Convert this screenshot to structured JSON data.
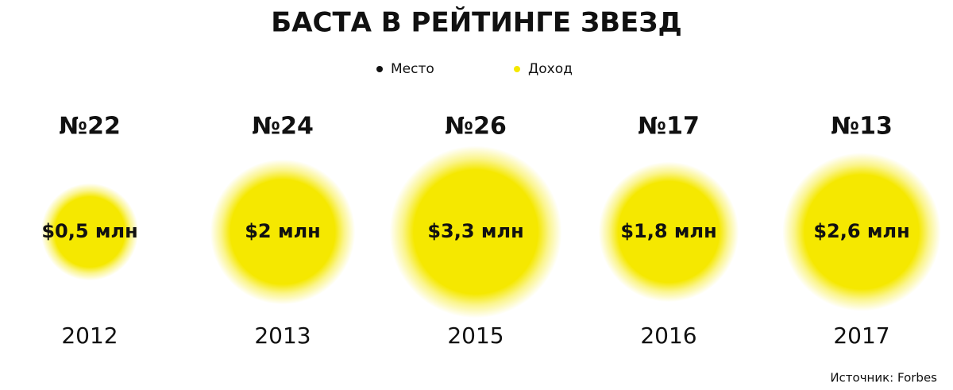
{
  "chart_data": {
    "type": "bubble",
    "title": "БАСТА В РЕЙТИНГЕ ЗВЕЗД",
    "categories": [
      "2012",
      "2013",
      "2015",
      "2016",
      "2017"
    ],
    "series": [
      {
        "name": "Место",
        "color": "#111111",
        "values": [
          22,
          24,
          26,
          17,
          13
        ],
        "value_labels": [
          "№22",
          "№24",
          "№26",
          "№17",
          "№13"
        ]
      },
      {
        "name": "Доход",
        "color": "#f5e800",
        "values": [
          0.5,
          2,
          3.3,
          1.8,
          2.6
        ],
        "value_labels": [
          "$0,5 млн",
          "$2 млн",
          "$3,3 млн",
          "$1,8 млн",
          "$2,6 млн"
        ]
      }
    ],
    "source": "Источник: Forbes"
  }
}
